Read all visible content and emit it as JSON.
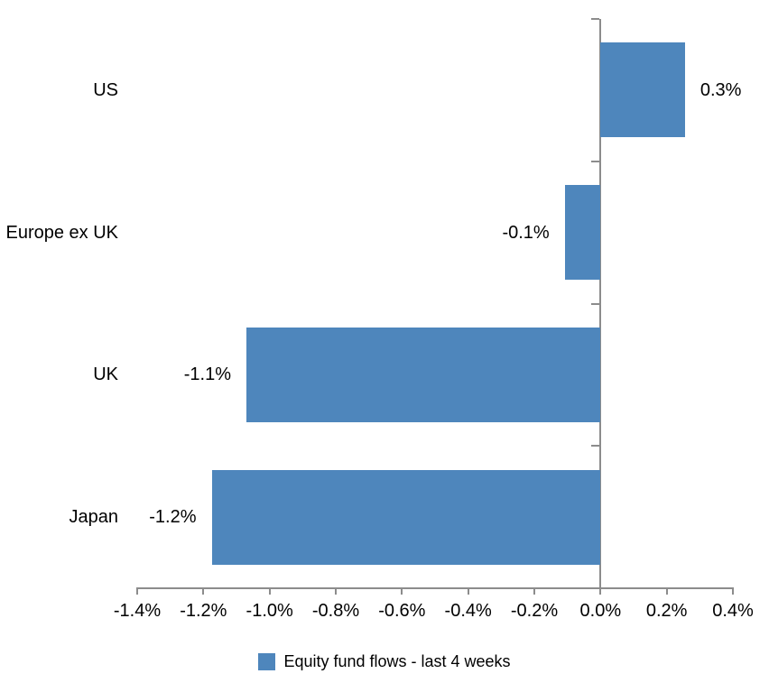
{
  "chart_data": {
    "type": "bar",
    "orientation": "horizontal",
    "title": "",
    "categories": [
      "US",
      "Europe ex UK",
      "UK",
      "Japan"
    ],
    "series": [
      {
        "name": "Equity fund flows - last 4 weeks",
        "values": [
          0.3,
          -0.1,
          -1.1,
          -1.2
        ],
        "data_labels": [
          "0.3%",
          "-0.1%",
          "-1.1%",
          "-1.2%"
        ],
        "plotted_values": [
          0.255,
          -0.108,
          -1.07,
          -1.175
        ]
      }
    ],
    "xlabel": "",
    "ylabel": "",
    "xlim": [
      -1.4,
      0.4
    ],
    "x_tick_step": 0.2,
    "x_tick_labels": [
      "-1.4%",
      "-1.2%",
      "-1.0%",
      "-0.8%",
      "-0.6%",
      "-0.4%",
      "-0.2%",
      "0.0%",
      "0.2%",
      "0.4%"
    ],
    "grid": "off",
    "legend_position": "bottom",
    "colors": {
      "bar": "#4E86BC",
      "axis": "#8C8C8C",
      "text": "#000000",
      "background": "#FFFFFF"
    }
  }
}
